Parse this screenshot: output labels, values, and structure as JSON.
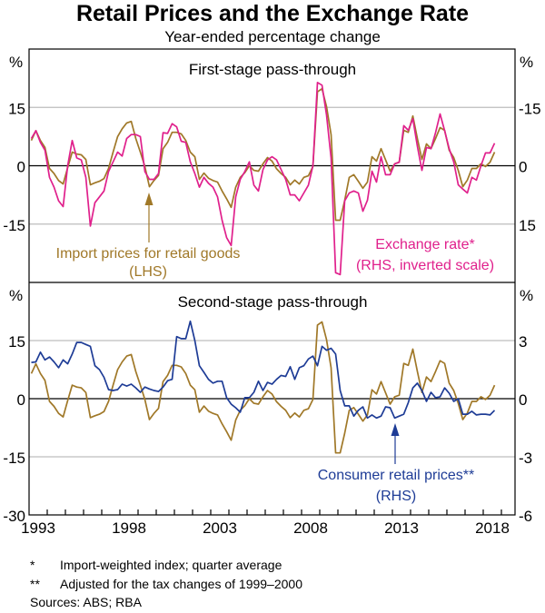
{
  "title": "Retail Prices and the Exchange Rate",
  "subtitle": "Year-ended percentage change",
  "notes": [
    {
      "mark": "*",
      "text": "Import-weighted index; quarter average"
    },
    {
      "mark": "**",
      "text": "Adjusted for the tax changes of 1999–2000"
    }
  ],
  "sources": "Sources: ABS; RBA",
  "colors": {
    "import_prices": "#a07828",
    "exchange_rate": "#e0208c",
    "consumer_prices": "#1e3c96",
    "axis": "#000000",
    "grid": "#bdbdbd"
  },
  "chart_data": [
    {
      "type": "line",
      "panel": "top",
      "title": "First-stage pass-through",
      "x_start": "1993Q1",
      "frequency": "quarterly",
      "x_tick_labels": [
        "1993",
        "1998",
        "2003",
        "2008",
        "2013",
        "2018"
      ],
      "left_axis": {
        "unit": "%",
        "range": [
          -30,
          30
        ],
        "ticks": [
          15,
          0,
          -15
        ],
        "tick_labels": [
          "15",
          "0",
          "-15"
        ]
      },
      "right_axis": {
        "unit": "%",
        "range": [
          30,
          -30
        ],
        "inverted": true,
        "ticks": [
          -15,
          0,
          15
        ],
        "tick_labels": [
          "-15",
          "0",
          "15"
        ]
      },
      "grid": true,
      "series": [
        {
          "name": "Import prices for retail goods",
          "axis": "LHS",
          "label": "Import prices for retail goods",
          "label2": "(LHS)",
          "values": [
            6.5,
            9,
            6.5,
            4.7,
            -0.7,
            -2,
            -3.8,
            -4.7,
            -0.5,
            3.5,
            3.0,
            2.8,
            1.6,
            -4.9,
            -4.4,
            -4.0,
            -3.3,
            -0.7,
            3.5,
            7.5,
            9.5,
            11,
            11.4,
            7,
            3.5,
            -0.2,
            -5.4,
            -3.8,
            -2.5,
            4.4,
            6,
            8.6,
            8.6,
            8.2,
            6.5,
            3.5,
            2.3,
            -3.5,
            -1.9,
            -3.2,
            -3.8,
            -4.2,
            -6.5,
            -8.5,
            -10.7,
            -5.5,
            -3.0,
            -1.8,
            0,
            -1.2,
            -1.4,
            0.5,
            2.1,
            1.2,
            -0.8,
            -2,
            -3,
            -4.9,
            -3.7,
            -4.7,
            -3,
            -2.6,
            -0.2,
            19,
            19.8,
            15.2,
            8,
            -14,
            -14,
            -8.9,
            -3,
            -2.3,
            -4,
            -5.8,
            -4.2,
            2.3,
            1.2,
            4.4,
            1.5,
            -1.4,
            0.5,
            0.9,
            9.1,
            8.6,
            12.8,
            7,
            1.6,
            5.6,
            4.4,
            7,
            9.8,
            9.1,
            4,
            2.1,
            -1.2,
            -5.4,
            -3.7,
            -0.7,
            -0.7,
            0.5,
            -0.2,
            0.9,
            3.5
          ]
        },
        {
          "name": "Exchange rate*",
          "axis": "RHS (inverted scale)",
          "label": "Exchange rate*",
          "label2": "(RHS, inverted scale)",
          "values": [
            -7,
            -9,
            -6,
            -4,
            3,
            5.5,
            9,
            10.5,
            0,
            -6.5,
            -2,
            -1.5,
            3,
            15.5,
            9.5,
            8,
            6.5,
            1.5,
            -1,
            -3.5,
            -2.5,
            -7,
            -8,
            -8,
            -7.5,
            1.5,
            3.5,
            3.5,
            2,
            -8.5,
            -8.3,
            -10.8,
            -10,
            -6.3,
            -6,
            -1,
            2,
            5.5,
            3,
            4.5,
            5.5,
            8,
            14,
            18.5,
            20.5,
            8,
            3.5,
            1.5,
            -1,
            5,
            6.5,
            1,
            -1.5,
            -2.3,
            -1.5,
            1,
            3.5,
            7.5,
            7.5,
            9,
            7,
            5,
            0,
            -21.4,
            -20.7,
            -13,
            -2,
            27.5,
            28,
            9,
            7,
            6.5,
            7,
            11.7,
            8.9,
            1.4,
            4.2,
            -2.3,
            2.3,
            2.3,
            -0.5,
            -0.9,
            -10.3,
            -9.1,
            -12.1,
            -5,
            1.2,
            -4.7,
            -4.4,
            -8.5,
            -13.3,
            -9,
            -4.4,
            -1,
            4.9,
            6,
            7,
            3,
            3.7,
            0,
            -3.3,
            -3.3,
            -5.8
          ]
        }
      ]
    },
    {
      "type": "line",
      "panel": "bottom",
      "title": "Second-stage pass-through",
      "x_start": "1993Q1",
      "frequency": "quarterly",
      "x_tick_labels": [
        "1993",
        "1998",
        "2003",
        "2008",
        "2013",
        "2018"
      ],
      "left_axis": {
        "unit": "%",
        "range": [
          -30,
          30
        ],
        "ticks": [
          15,
          0,
          -15,
          -30
        ],
        "tick_labels": [
          "15",
          "0",
          "-15",
          "-30"
        ]
      },
      "right_axis": {
        "unit": "%",
        "range": [
          -6,
          6
        ],
        "ticks": [
          3,
          0,
          -3,
          -6
        ],
        "tick_labels": [
          "3",
          "0",
          "-3",
          "-6"
        ]
      },
      "grid": true,
      "series": [
        {
          "name": "Import prices for retail goods",
          "axis": "LHS",
          "values_ref": "same as top panel import prices"
        },
        {
          "name": "Consumer retail prices**",
          "axis": "RHS",
          "label": "Consumer retail prices**",
          "label2": "(RHS)",
          "values": [
            1.87,
            1.9,
            2.4,
            2.0,
            2.15,
            1.9,
            1.6,
            2.0,
            1.8,
            2.3,
            2.9,
            2.9,
            2.8,
            2.7,
            1.7,
            1.5,
            1.1,
            0.47,
            0.42,
            0.47,
            0.75,
            0.65,
            0.75,
            0.56,
            0.33,
            0.6,
            0.5,
            0.42,
            0.37,
            0.6,
            0.93,
            1.0,
            3.2,
            3.1,
            3.1,
            4.0,
            3.0,
            1.7,
            1.36,
            1.0,
            0.8,
            0.9,
            0.9,
            0.05,
            -0.28,
            -0.47,
            -0.7,
            0.05,
            0.05,
            0.33,
            0.9,
            0.42,
            0.84,
            0.75,
            1.0,
            1.2,
            1.15,
            1.65,
            1.0,
            1.6,
            1.7,
            2.05,
            2.2,
            1.7,
            2.7,
            2.5,
            2.6,
            2.3,
            0.42,
            -0.37,
            -0.37,
            -0.9,
            -0.6,
            -0.42,
            -1.0,
            -0.84,
            -1.0,
            -0.9,
            -0.42,
            -0.47,
            -1.0,
            -0.9,
            -0.8,
            -0.2,
            0.56,
            0.8,
            0.42,
            -0.14,
            0.33,
            0.05,
            0.1,
            0.56,
            0.28,
            -0.14,
            0,
            -0.8,
            -0.8,
            -0.65,
            -0.84,
            -0.8,
            -0.8,
            -0.84,
            -0.6
          ]
        }
      ]
    }
  ]
}
